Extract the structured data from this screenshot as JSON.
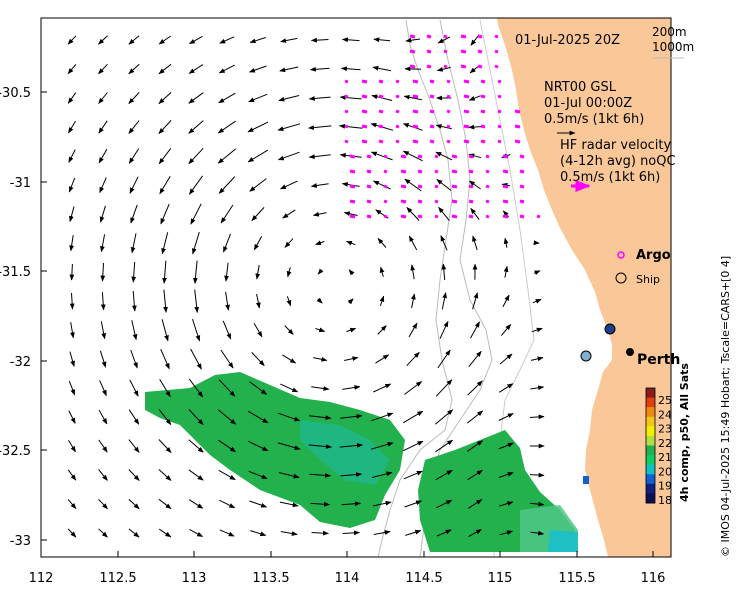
{
  "map": {
    "date_label": "01-Jul-2025 20Z",
    "depth_legend": [
      "200m",
      "1000m"
    ],
    "vector_legend": {
      "model_title": "NRT00 GSL",
      "model_time": "01-Jul 00:00Z",
      "model_scale": "0.5m/s (1kt 6h)",
      "radar_line1": "HF radar velocity",
      "radar_line2": "(4-12h avg) noQC",
      "radar_scale": "0.5m/s (1kt 6h)"
    },
    "symbols": {
      "argo": "Argo",
      "ship": "Ship"
    },
    "place_label": "Perth",
    "colorbar": {
      "title": "4h comp, p50, All Sats",
      "ticks": [
        "25",
        "24",
        "23",
        "22",
        "21",
        "20",
        "19",
        "18"
      ],
      "colors": [
        "#8b1a1a",
        "#e04010",
        "#f08a10",
        "#f0c81a",
        "#f0f000",
        "#b0e040",
        "#22b14c",
        "#11cc66",
        "#10c0c0",
        "#1060d0",
        "#102080",
        "#101050"
      ]
    },
    "credit": "© IMOS 04-Jul-2025 15:49 Hobart; Tscale=CARS+[0 4]",
    "x_ticks": [
      "112",
      "112.5",
      "113",
      "113.5",
      "114",
      "114.5",
      "115",
      "115.5",
      "116"
    ],
    "y_ticks": [
      "-30.5",
      "-31",
      "-31.5",
      "-32",
      "-32.5",
      "-33"
    ],
    "colors": {
      "land": "#fac898",
      "radar": "#ff00ff",
      "sst_green": "#22b14c"
    }
  }
}
